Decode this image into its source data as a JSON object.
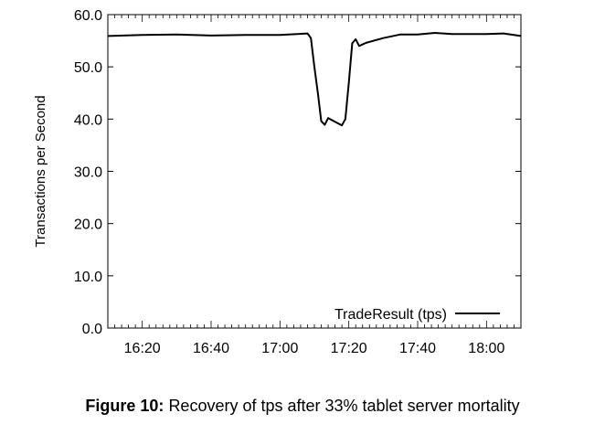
{
  "caption": {
    "label": "Figure 10:",
    "text": "Recovery of tps after 33% tablet server mortality"
  },
  "chart_data": {
    "type": "line",
    "title": "",
    "xlabel": "",
    "ylabel": "Transactions per Second",
    "ylim": [
      0,
      60
    ],
    "xlim": [
      "16:10",
      "18:10"
    ],
    "y_ticks": [
      "0.0",
      "10.0",
      "20.0",
      "30.0",
      "40.0",
      "50.0",
      "60.0"
    ],
    "x_ticks": [
      "16:20",
      "16:40",
      "17:00",
      "17:20",
      "17:40",
      "18:00"
    ],
    "legend_position": "bottom-right",
    "grid": false,
    "series": [
      {
        "name": "TradeResult (tps)",
        "color": "#000000",
        "points": [
          [
            "16:10",
            55.9
          ],
          [
            "16:20",
            56.1
          ],
          [
            "16:30",
            56.2
          ],
          [
            "16:40",
            56.0
          ],
          [
            "16:50",
            56.1
          ],
          [
            "17:00",
            56.1
          ],
          [
            "17:05",
            56.3
          ],
          [
            "17:08",
            56.4
          ],
          [
            "17:09",
            55.5
          ],
          [
            "17:10",
            50.0
          ],
          [
            "17:11",
            45.0
          ],
          [
            "17:12",
            39.6
          ],
          [
            "17:13",
            38.9
          ],
          [
            "17:14",
            40.2
          ],
          [
            "17:16",
            39.5
          ],
          [
            "17:18",
            38.8
          ],
          [
            "17:19",
            40.0
          ],
          [
            "17:20",
            47.0
          ],
          [
            "17:21",
            54.5
          ],
          [
            "17:22",
            55.3
          ],
          [
            "17:23",
            54.0
          ],
          [
            "17:25",
            54.6
          ],
          [
            "17:30",
            55.5
          ],
          [
            "17:35",
            56.2
          ],
          [
            "17:40",
            56.2
          ],
          [
            "17:45",
            56.5
          ],
          [
            "17:50",
            56.3
          ],
          [
            "18:00",
            56.3
          ],
          [
            "18:05",
            56.4
          ],
          [
            "18:10",
            55.9
          ]
        ]
      }
    ]
  }
}
